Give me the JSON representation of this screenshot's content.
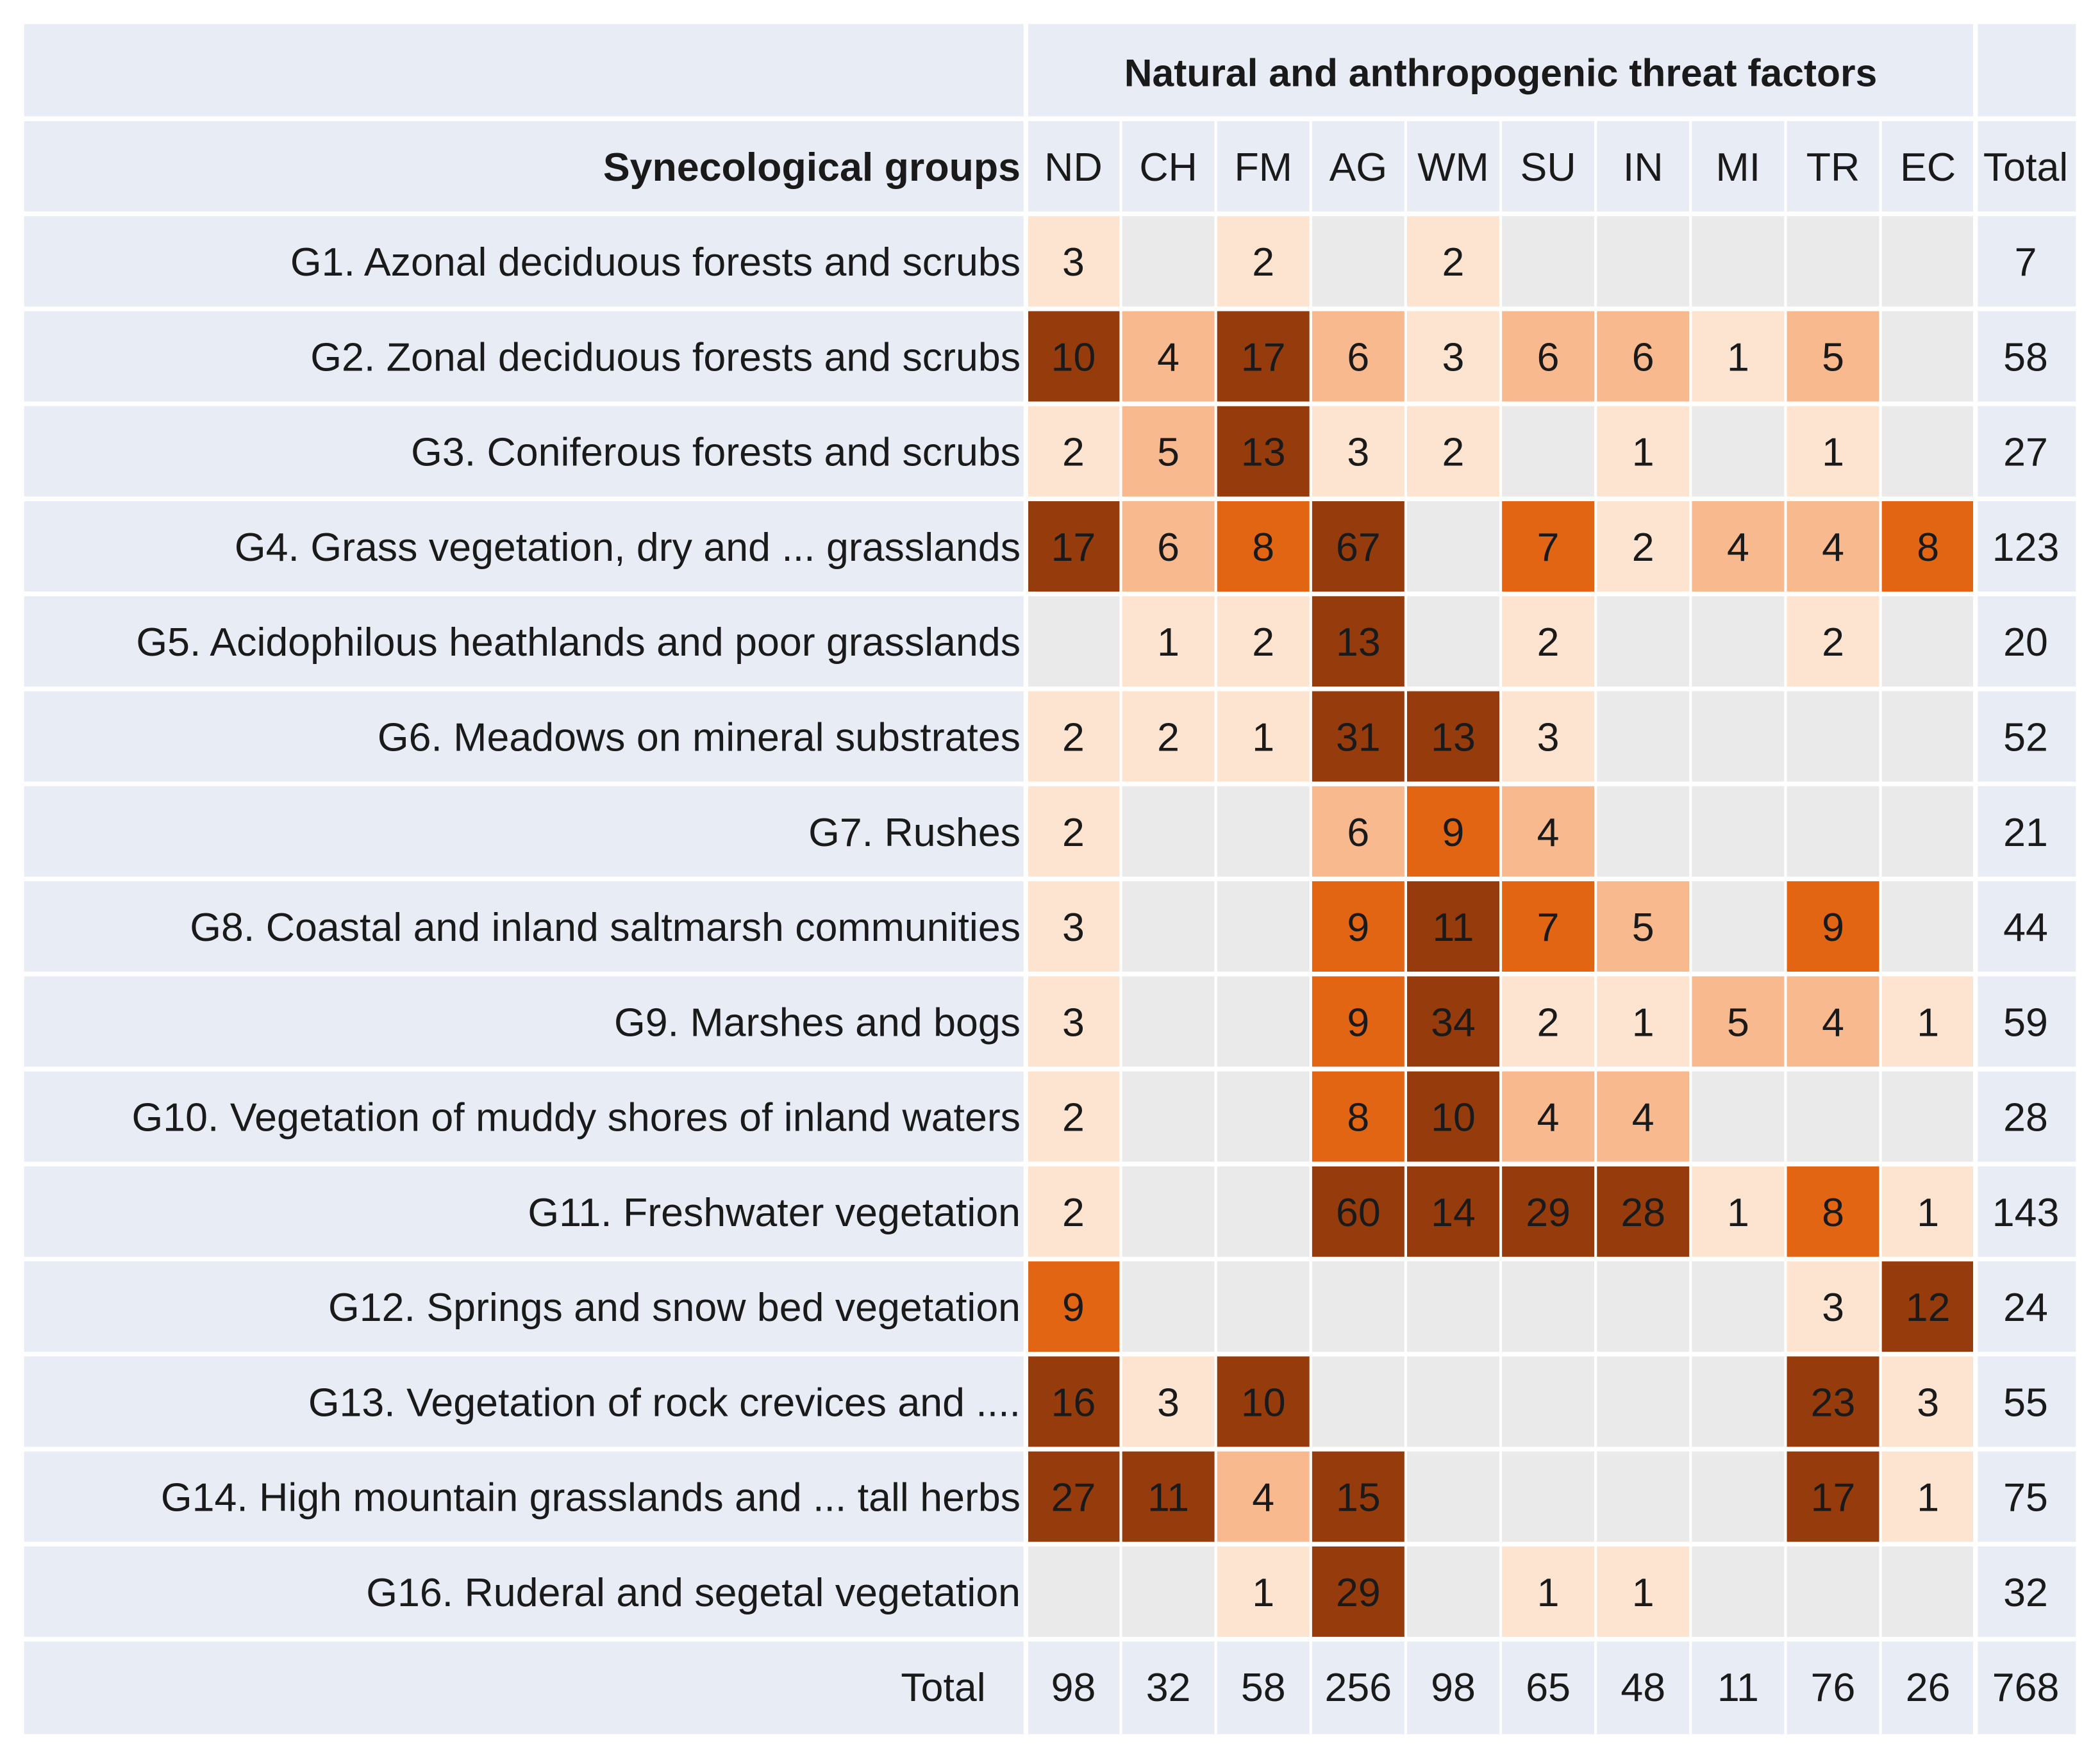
{
  "chart_data": {
    "type": "heatmap",
    "title": "Natural and anthropogenic threat factors",
    "row_header": "Synecological groups",
    "columns": [
      "ND",
      "CH",
      "FM",
      "AG",
      "WM",
      "SU",
      "IN",
      "MI",
      "TR",
      "EC"
    ],
    "total_label": "Total",
    "rows": [
      {
        "label": "G1. Azonal deciduous forests and scrubs",
        "values": [
          3,
          null,
          2,
          null,
          2,
          null,
          null,
          null,
          null,
          null
        ],
        "total": 7
      },
      {
        "label": "G2. Zonal deciduous forests and scrubs",
        "values": [
          10,
          4,
          17,
          6,
          3,
          6,
          6,
          1,
          5,
          null
        ],
        "total": 58
      },
      {
        "label": "G3. Coniferous forests and scrubs",
        "values": [
          2,
          5,
          13,
          3,
          2,
          null,
          1,
          null,
          1,
          null
        ],
        "total": 27
      },
      {
        "label": "G4. Grass vegetation, dry and ... grasslands",
        "values": [
          17,
          6,
          8,
          67,
          null,
          7,
          2,
          4,
          4,
          8
        ],
        "total": 123
      },
      {
        "label": "G5. Acidophilous heathlands and poor grasslands",
        "values": [
          null,
          1,
          2,
          13,
          null,
          2,
          null,
          null,
          2,
          null
        ],
        "total": 20
      },
      {
        "label": "G6. Meadows on mineral substrates",
        "values": [
          2,
          2,
          1,
          31,
          13,
          3,
          null,
          null,
          null,
          null
        ],
        "total": 52
      },
      {
        "label": "G7. Rushes",
        "values": [
          2,
          null,
          null,
          6,
          9,
          4,
          null,
          null,
          null,
          null
        ],
        "total": 21
      },
      {
        "label": "G8. Coastal and inland saltmarsh communities",
        "values": [
          3,
          null,
          null,
          9,
          11,
          7,
          5,
          null,
          9,
          null
        ],
        "total": 44
      },
      {
        "label": "G9. Marshes and bogs",
        "values": [
          3,
          null,
          null,
          9,
          34,
          2,
          1,
          5,
          4,
          1
        ],
        "total": 59
      },
      {
        "label": "G10. Vegetation of muddy shores of inland waters",
        "values": [
          2,
          null,
          null,
          8,
          10,
          4,
          4,
          null,
          null,
          null
        ],
        "total": 28
      },
      {
        "label": "G11. Freshwater vegetation",
        "values": [
          2,
          null,
          null,
          60,
          14,
          29,
          28,
          1,
          8,
          1
        ],
        "total": 143
      },
      {
        "label": "G12. Springs and snow bed vegetation",
        "values": [
          9,
          null,
          null,
          null,
          null,
          null,
          null,
          null,
          3,
          12
        ],
        "total": 24
      },
      {
        "label": "G13. Vegetation of rock crevices and ....",
        "values": [
          16,
          3,
          10,
          null,
          null,
          null,
          null,
          null,
          23,
          3
        ],
        "total": 55
      },
      {
        "label": "G14. High mountain grasslands and ... tall herbs",
        "values": [
          27,
          11,
          4,
          15,
          null,
          null,
          null,
          null,
          17,
          1
        ],
        "total": 75
      },
      {
        "label": "G16. Ruderal and segetal vegetation",
        "values": [
          null,
          null,
          1,
          29,
          null,
          1,
          1,
          null,
          null,
          null
        ],
        "total": 32
      }
    ],
    "column_totals": [
      98,
      32,
      58,
      256,
      98,
      65,
      48,
      11,
      76,
      26
    ],
    "grand_total": 768
  },
  "colors": {
    "table_background": "#e8ecf5",
    "empty_cell": "#eaeaea",
    "grid_line": "#ffffff",
    "text": "#1a1a1a",
    "scale_level_1": "#fde4d0",
    "scale_level_2": "#f9b98f",
    "scale_level_3": "#e26514",
    "scale_level_4": "#963c0c"
  }
}
